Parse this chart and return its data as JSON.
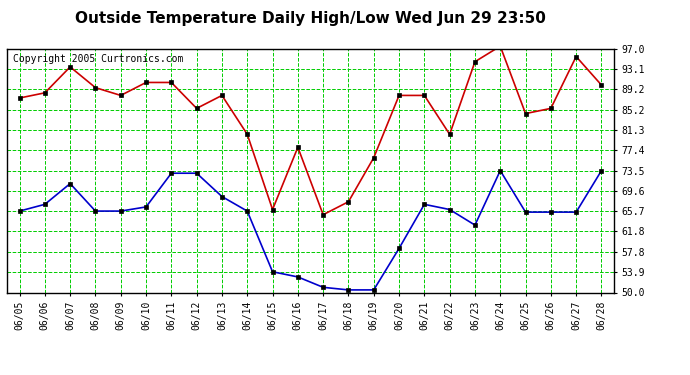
{
  "title": "Outside Temperature Daily High/Low Wed Jun 29 23:50",
  "copyright": "Copyright 2005 Curtronics.com",
  "dates": [
    "06/05",
    "06/06",
    "06/07",
    "06/08",
    "06/09",
    "06/10",
    "06/11",
    "06/12",
    "06/13",
    "06/14",
    "06/15",
    "06/16",
    "06/17",
    "06/18",
    "06/19",
    "06/20",
    "06/21",
    "06/22",
    "06/23",
    "06/24",
    "06/25",
    "06/26",
    "06/27",
    "06/28"
  ],
  "high": [
    87.5,
    88.5,
    93.5,
    89.5,
    88.0,
    90.5,
    90.5,
    85.5,
    88.0,
    80.5,
    66.0,
    78.0,
    65.0,
    67.5,
    76.0,
    88.0,
    88.0,
    80.5,
    94.5,
    97.5,
    84.5,
    85.5,
    95.5,
    90.0
  ],
  "low": [
    65.7,
    67.0,
    71.0,
    65.7,
    65.7,
    66.5,
    73.0,
    73.0,
    68.5,
    65.7,
    54.0,
    53.0,
    51.0,
    50.5,
    50.5,
    58.5,
    67.0,
    66.0,
    63.0,
    73.5,
    65.5,
    65.5,
    65.5,
    73.5
  ],
  "high_color": "#cc0000",
  "low_color": "#0000cc",
  "bg_color": "#ffffff",
  "plot_bg": "#ffffff",
  "grid_color": "#00cc00",
  "ylim": [
    50.0,
    97.0
  ],
  "yticks": [
    50.0,
    53.9,
    57.8,
    61.8,
    65.7,
    69.6,
    73.5,
    77.4,
    81.3,
    85.2,
    89.2,
    93.1,
    97.0
  ],
  "title_fontsize": 11,
  "marker": "s",
  "markersize": 3,
  "linewidth": 1.2,
  "copyright_fontsize": 7,
  "tick_fontsize": 7
}
